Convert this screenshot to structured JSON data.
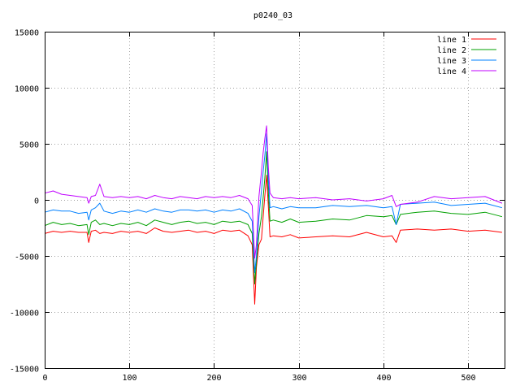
{
  "chart_data": {
    "type": "line",
    "title": "p0240_03",
    "xlabel": "",
    "ylabel": "",
    "xlim": [
      0,
      543
    ],
    "ylim": [
      -15000,
      15000
    ],
    "xticks": [
      0,
      100,
      200,
      300,
      400,
      500
    ],
    "yticks": [
      -15000,
      -10000,
      -5000,
      0,
      5000,
      10000,
      15000
    ],
    "grid": true,
    "legend_position": "top-right",
    "series": [
      {
        "name": "line 1",
        "color": "#ff0000",
        "x": [
          0,
          10,
          20,
          30,
          40,
          50,
          52,
          55,
          60,
          65,
          70,
          80,
          90,
          100,
          110,
          120,
          130,
          140,
          150,
          160,
          170,
          180,
          190,
          200,
          210,
          220,
          230,
          240,
          245,
          248,
          250,
          253,
          256,
          258,
          260,
          262,
          264,
          266,
          270,
          280,
          290,
          300,
          320,
          340,
          360,
          380,
          400,
          410,
          415,
          420,
          440,
          460,
          480,
          500,
          520,
          540
        ],
        "y": [
          -3000,
          -2800,
          -2900,
          -2800,
          -2900,
          -2900,
          -3800,
          -2800,
          -2700,
          -3000,
          -2900,
          -3000,
          -2800,
          -2900,
          -2800,
          -3000,
          -2500,
          -2800,
          -2900,
          -2800,
          -2700,
          -2900,
          -2800,
          -3000,
          -2700,
          -2800,
          -2700,
          -3200,
          -4000,
          -9300,
          -6000,
          -4000,
          -3500,
          -1500,
          400,
          2200,
          -500,
          -3300,
          -3200,
          -3300,
          -3100,
          -3400,
          -3300,
          -3200,
          -3300,
          -2900,
          -3300,
          -3200,
          -3800,
          -2700,
          -2600,
          -2700,
          -2600,
          -2800,
          -2700,
          -2900
        ]
      },
      {
        "name": "line 2",
        "color": "#00a000",
        "x": [
          0,
          10,
          20,
          30,
          40,
          50,
          52,
          55,
          60,
          65,
          70,
          80,
          90,
          100,
          110,
          120,
          130,
          140,
          150,
          160,
          170,
          180,
          190,
          200,
          210,
          220,
          230,
          240,
          245,
          248,
          250,
          253,
          256,
          258,
          260,
          262,
          264,
          266,
          270,
          280,
          290,
          300,
          320,
          340,
          360,
          380,
          400,
          410,
          415,
          420,
          440,
          460,
          480,
          500,
          520,
          540
        ],
        "y": [
          -2300,
          -2000,
          -2200,
          -2100,
          -2300,
          -2200,
          -3100,
          -2000,
          -1800,
          -2200,
          -2100,
          -2300,
          -2100,
          -2200,
          -2000,
          -2300,
          -1800,
          -2000,
          -2200,
          -2000,
          -1900,
          -2100,
          -2000,
          -2200,
          -1900,
          -2000,
          -1900,
          -2200,
          -3000,
          -7500,
          -5500,
          -3000,
          -1500,
          200,
          2000,
          4300,
          800,
          -1900,
          -1800,
          -2000,
          -1700,
          -2000,
          -1900,
          -1700,
          -1800,
          -1400,
          -1500,
          -1400,
          -2200,
          -1300,
          -1100,
          -1000,
          -1200,
          -1300,
          -1100,
          -1500
        ]
      },
      {
        "name": "line 3",
        "color": "#0080ff",
        "x": [
          0,
          10,
          20,
          30,
          40,
          50,
          52,
          55,
          60,
          65,
          70,
          80,
          90,
          100,
          110,
          120,
          130,
          140,
          150,
          160,
          170,
          180,
          190,
          200,
          210,
          220,
          230,
          240,
          245,
          248,
          250,
          253,
          256,
          258,
          260,
          262,
          264,
          266,
          270,
          280,
          290,
          300,
          320,
          340,
          360,
          380,
          400,
          410,
          415,
          420,
          440,
          460,
          480,
          500,
          520,
          540
        ],
        "y": [
          -1100,
          -900,
          -1000,
          -1000,
          -1200,
          -1100,
          -1800,
          -900,
          -700,
          -300,
          -1000,
          -1200,
          -1000,
          -1100,
          -900,
          -1100,
          -800,
          -1000,
          -1100,
          -900,
          -900,
          -1000,
          -900,
          -1100,
          -900,
          -1000,
          -800,
          -1200,
          -1900,
          -6500,
          -5000,
          -1500,
          800,
          2500,
          4000,
          5900,
          2000,
          -700,
          -600,
          -800,
          -600,
          -700,
          -700,
          -500,
          -600,
          -500,
          -700,
          -600,
          -2200,
          -400,
          -300,
          -200,
          -500,
          -400,
          -300,
          -700
        ]
      },
      {
        "name": "line 4",
        "color": "#c000ff",
        "x": [
          0,
          10,
          20,
          30,
          40,
          50,
          52,
          55,
          60,
          65,
          70,
          80,
          90,
          100,
          110,
          120,
          130,
          140,
          150,
          160,
          170,
          180,
          190,
          200,
          210,
          220,
          230,
          240,
          245,
          248,
          250,
          253,
          256,
          258,
          260,
          262,
          264,
          266,
          270,
          280,
          290,
          300,
          320,
          340,
          360,
          380,
          400,
          410,
          415,
          420,
          440,
          460,
          480,
          500,
          520,
          540
        ],
        "y": [
          600,
          800,
          500,
          400,
          300,
          200,
          -300,
          300,
          400,
          1400,
          300,
          200,
          300,
          200,
          300,
          100,
          400,
          200,
          100,
          300,
          200,
          100,
          300,
          200,
          300,
          200,
          400,
          100,
          -500,
          -5200,
          -4000,
          300,
          2500,
          4200,
          5500,
          6600,
          3000,
          600,
          200,
          100,
          200,
          100,
          200,
          0,
          100,
          -100,
          100,
          400,
          -600,
          -400,
          -200,
          300,
          100,
          200,
          300,
          -300
        ]
      }
    ]
  }
}
